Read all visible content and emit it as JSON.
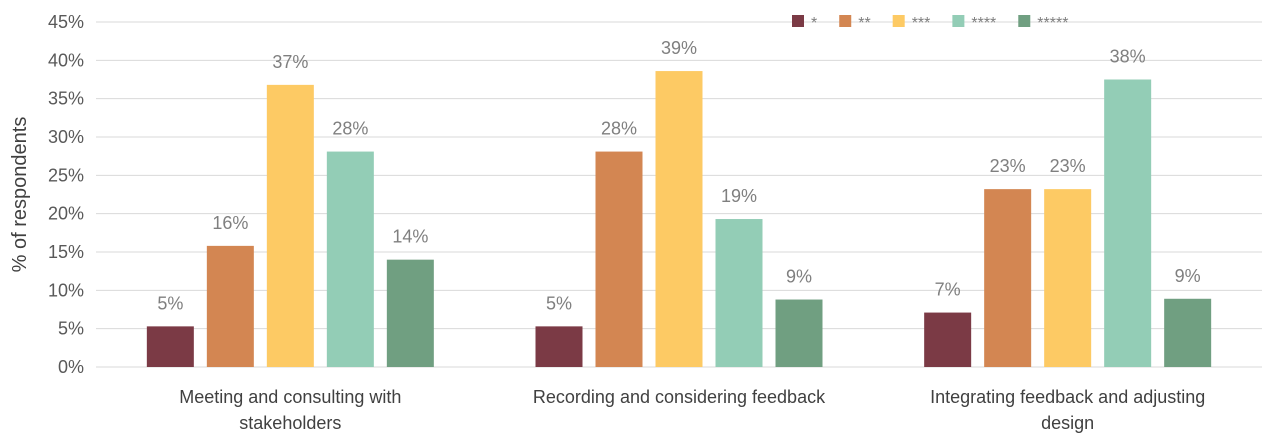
{
  "chart_data": {
    "type": "bar",
    "title": "",
    "xlabel": "",
    "ylabel": "% of respondents",
    "ylim": [
      0,
      45
    ],
    "ytick_step": 5,
    "ytick_suffix": "%",
    "grid": "horizontal",
    "legend_position": "top-right",
    "categories": [
      [
        "Meeting and consulting with",
        "stakeholders"
      ],
      [
        "Recording and considering feedback"
      ],
      [
        "Integrating feedback and adjusting",
        "design"
      ]
    ],
    "series": [
      {
        "name": "*",
        "color": "#7b3a45",
        "values": [
          5.3,
          5.3,
          7.1
        ],
        "labels": [
          "5%",
          "5%",
          "7%"
        ]
      },
      {
        "name": "**",
        "color": "#d38652",
        "values": [
          15.8,
          28.1,
          23.2
        ],
        "labels": [
          "16%",
          "28%",
          "23%"
        ]
      },
      {
        "name": "***",
        "color": "#fdca64",
        "values": [
          36.8,
          38.6,
          23.2
        ],
        "labels": [
          "37%",
          "39%",
          "23%"
        ]
      },
      {
        "name": "****",
        "color": "#93cdb6",
        "values": [
          28.1,
          19.3,
          37.5
        ],
        "labels": [
          "28%",
          "19%",
          "38%"
        ]
      },
      {
        "name": "*****",
        "color": "#709f81",
        "values": [
          14.0,
          8.8,
          8.9
        ],
        "labels": [
          "14%",
          "9%",
          "9%"
        ]
      }
    ]
  }
}
